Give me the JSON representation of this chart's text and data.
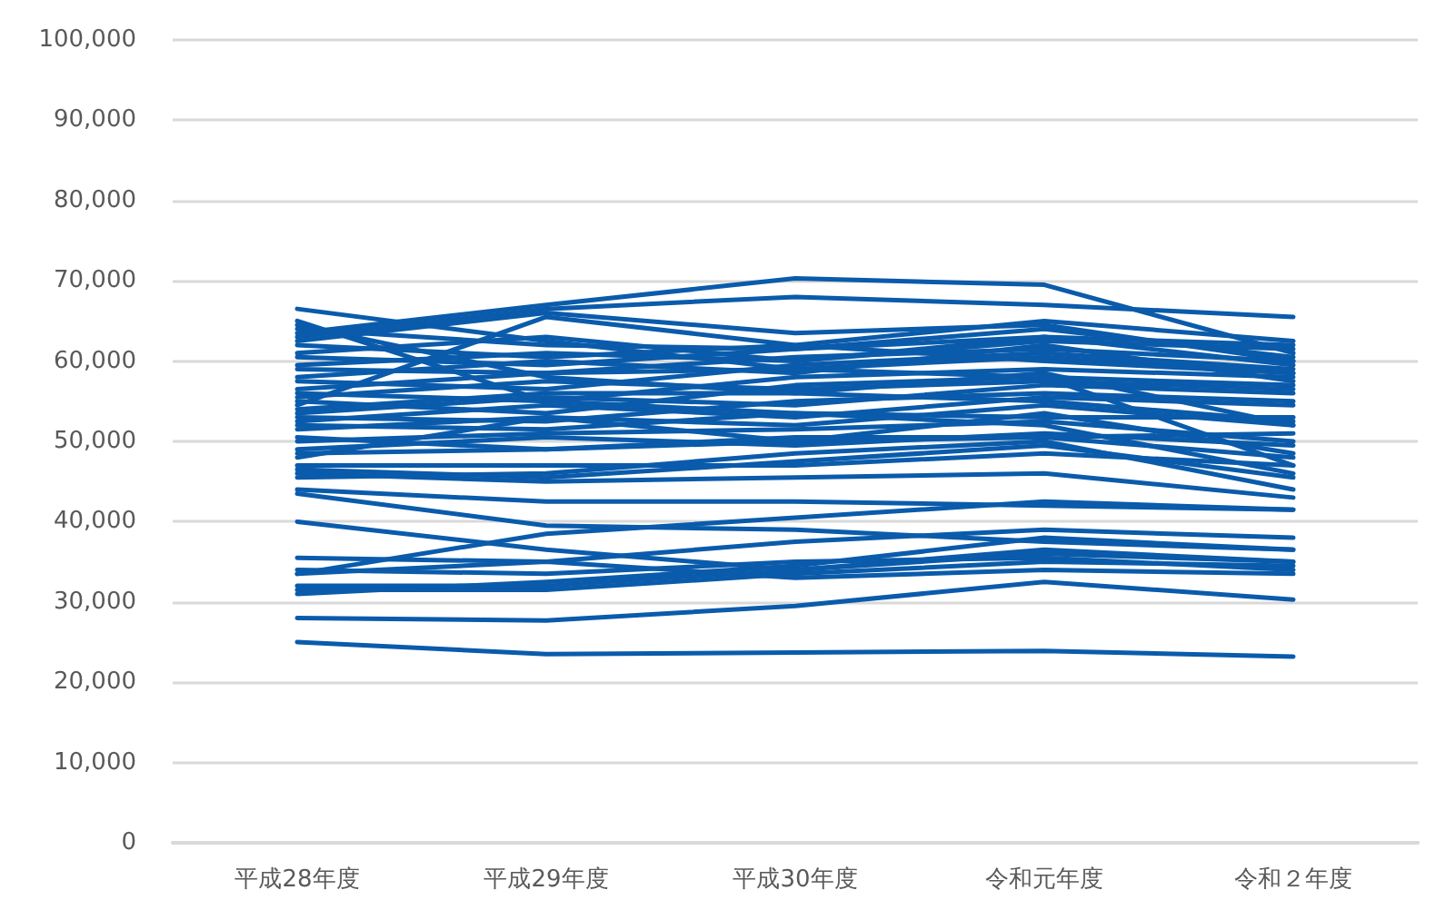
{
  "chart_data": {
    "type": "line",
    "categories": [
      "平成28年度",
      "平成29年度",
      "平成30年度",
      "令和元年度",
      "令和２年度"
    ],
    "ylim": [
      0,
      100000
    ],
    "yticks": [
      {
        "value": 0,
        "label": "0"
      },
      {
        "value": 10000,
        "label": "10,000"
      },
      {
        "value": 20000,
        "label": "20,000"
      },
      {
        "value": 30000,
        "label": "30,000"
      },
      {
        "value": 40000,
        "label": "40,000"
      },
      {
        "value": 50000,
        "label": "50,000"
      },
      {
        "value": 60000,
        "label": "60,000"
      },
      {
        "value": 70000,
        "label": "70,000"
      },
      {
        "value": 80000,
        "label": "80,000"
      },
      {
        "value": 90000,
        "label": "90,000"
      },
      {
        "value": 100000,
        "label": "100,000"
      }
    ],
    "grid": "y",
    "marker": "none",
    "line_style": "solid",
    "series": [
      {
        "color": "#0a5bab",
        "values": [
          25000,
          23500,
          23700,
          23900,
          23200
        ]
      },
      {
        "color": "#0a5bab",
        "values": [
          28000,
          27700,
          29500,
          32500,
          30300
        ]
      },
      {
        "color": "#0a5bab",
        "values": [
          31500,
          31500,
          33500,
          35000,
          34500
        ]
      },
      {
        "color": "#0a5bab",
        "values": [
          32000,
          32000,
          34000,
          36000,
          35000
        ]
      },
      {
        "color": "#0a5bab",
        "values": [
          31000,
          32500,
          34500,
          38000,
          36500
        ]
      },
      {
        "color": "#0a5bab",
        "values": [
          33500,
          35000,
          33000,
          34000,
          33500
        ]
      },
      {
        "color": "#0a5bab",
        "values": [
          34000,
          33500,
          35000,
          35500,
          34000
        ]
      },
      {
        "color": "#0a5bab",
        "values": [
          35500,
          35000,
          37500,
          39000,
          38000
        ]
      },
      {
        "color": "#0a5bab",
        "values": [
          33500,
          38500,
          40500,
          42500,
          41500
        ]
      },
      {
        "color": "#0a5bab",
        "values": [
          40000,
          36500,
          34000,
          36500,
          35000
        ]
      },
      {
        "color": "#0a5bab",
        "values": [
          43500,
          39500,
          39000,
          37500,
          36500
        ]
      },
      {
        "color": "#0a5bab",
        "values": [
          44000,
          42500,
          42500,
          42000,
          41500
        ]
      },
      {
        "color": "#0a5bab",
        "values": [
          46000,
          45000,
          45500,
          46000,
          43000
        ]
      },
      {
        "color": "#0a5bab",
        "values": [
          46500,
          45500,
          47500,
          49500,
          45500
        ]
      },
      {
        "color": "#0a5bab",
        "values": [
          47000,
          47000,
          47000,
          48500,
          47000
        ]
      },
      {
        "color": "#0a5bab",
        "values": [
          48500,
          49000,
          50000,
          50500,
          48000
        ]
      },
      {
        "color": "#0a5bab",
        "values": [
          49000,
          50500,
          49500,
          51000,
          49500
        ]
      },
      {
        "color": "#0a5bab",
        "values": [
          50000,
          51000,
          51500,
          52500,
          50000
        ]
      },
      {
        "color": "#0a5bab",
        "values": [
          50500,
          49000,
          50500,
          50500,
          51000
        ]
      },
      {
        "color": "#0a5bab",
        "values": [
          51500,
          53000,
          52000,
          54500,
          52000
        ]
      },
      {
        "color": "#0a5bab",
        "values": [
          52000,
          51500,
          53500,
          53000,
          53000
        ]
      },
      {
        "color": "#0a5bab",
        "values": [
          52500,
          54500,
          53000,
          55500,
          54500
        ]
      },
      {
        "color": "#0a5bab",
        "values": [
          53000,
          52500,
          55000,
          56000,
          55000
        ]
      },
      {
        "color": "#0a5bab",
        "values": [
          53500,
          55500,
          54500,
          57000,
          56000
        ]
      },
      {
        "color": "#0a5bab",
        "values": [
          54000,
          56000,
          56000,
          55000,
          52500
        ]
      },
      {
        "color": "#0a5bab",
        "values": [
          55000,
          53500,
          57000,
          58000,
          57000
        ]
      },
      {
        "color": "#0a5bab",
        "values": [
          55500,
          57500,
          56500,
          57500,
          56500
        ]
      },
      {
        "color": "#0a5bab",
        "values": [
          56000,
          55000,
          58000,
          59000,
          58000
        ]
      },
      {
        "color": "#0a5bab",
        "values": [
          56500,
          58500,
          59000,
          60500,
          58500
        ]
      },
      {
        "color": "#0a5bab",
        "values": [
          57500,
          56500,
          59500,
          61000,
          59000
        ]
      },
      {
        "color": "#0a5bab",
        "values": [
          58000,
          60000,
          58500,
          62000,
          57500
        ]
      },
      {
        "color": "#0a5bab",
        "values": [
          59000,
          58500,
          60500,
          61500,
          60000
        ]
      },
      {
        "color": "#0a5bab",
        "values": [
          59500,
          61000,
          60000,
          63000,
          59500
        ]
      },
      {
        "color": "#0a5bab",
        "values": [
          60500,
          59500,
          61500,
          64000,
          60500
        ]
      },
      {
        "color": "#0a5bab",
        "values": [
          61000,
          63000,
          60000,
          62500,
          61500
        ]
      },
      {
        "color": "#0a5bab",
        "values": [
          62000,
          60500,
          62000,
          65000,
          62500
        ]
      },
      {
        "color": "#0a5bab",
        "values": [
          62500,
          66000,
          63500,
          64500,
          60000
        ]
      },
      {
        "color": "#0a5bab",
        "values": [
          63000,
          66500,
          68000,
          67000,
          65500
        ]
      },
      {
        "color": "#0a5bab",
        "values": [
          63500,
          67000,
          70300,
          69500,
          61000
        ]
      },
      {
        "color": "#0a5bab",
        "values": [
          64000,
          62000,
          61500,
          63000,
          62000
        ]
      },
      {
        "color": "#0a5bab",
        "values": [
          64500,
          58000,
          56000,
          58500,
          52000
        ]
      },
      {
        "color": "#0a5bab",
        "values": [
          65000,
          55000,
          53500,
          52000,
          46000
        ]
      },
      {
        "color": "#0a5bab",
        "values": [
          66500,
          62500,
          59000,
          58000,
          47000
        ]
      },
      {
        "color": "#0a5bab",
        "values": [
          48000,
          53000,
          50000,
          53500,
          48500
        ]
      },
      {
        "color": "#0a5bab",
        "values": [
          45500,
          46000,
          48500,
          50000,
          44000
        ]
      },
      {
        "color": "#0a5bab",
        "values": [
          54500,
          65500,
          62000,
          60000,
          58500
        ]
      }
    ]
  }
}
